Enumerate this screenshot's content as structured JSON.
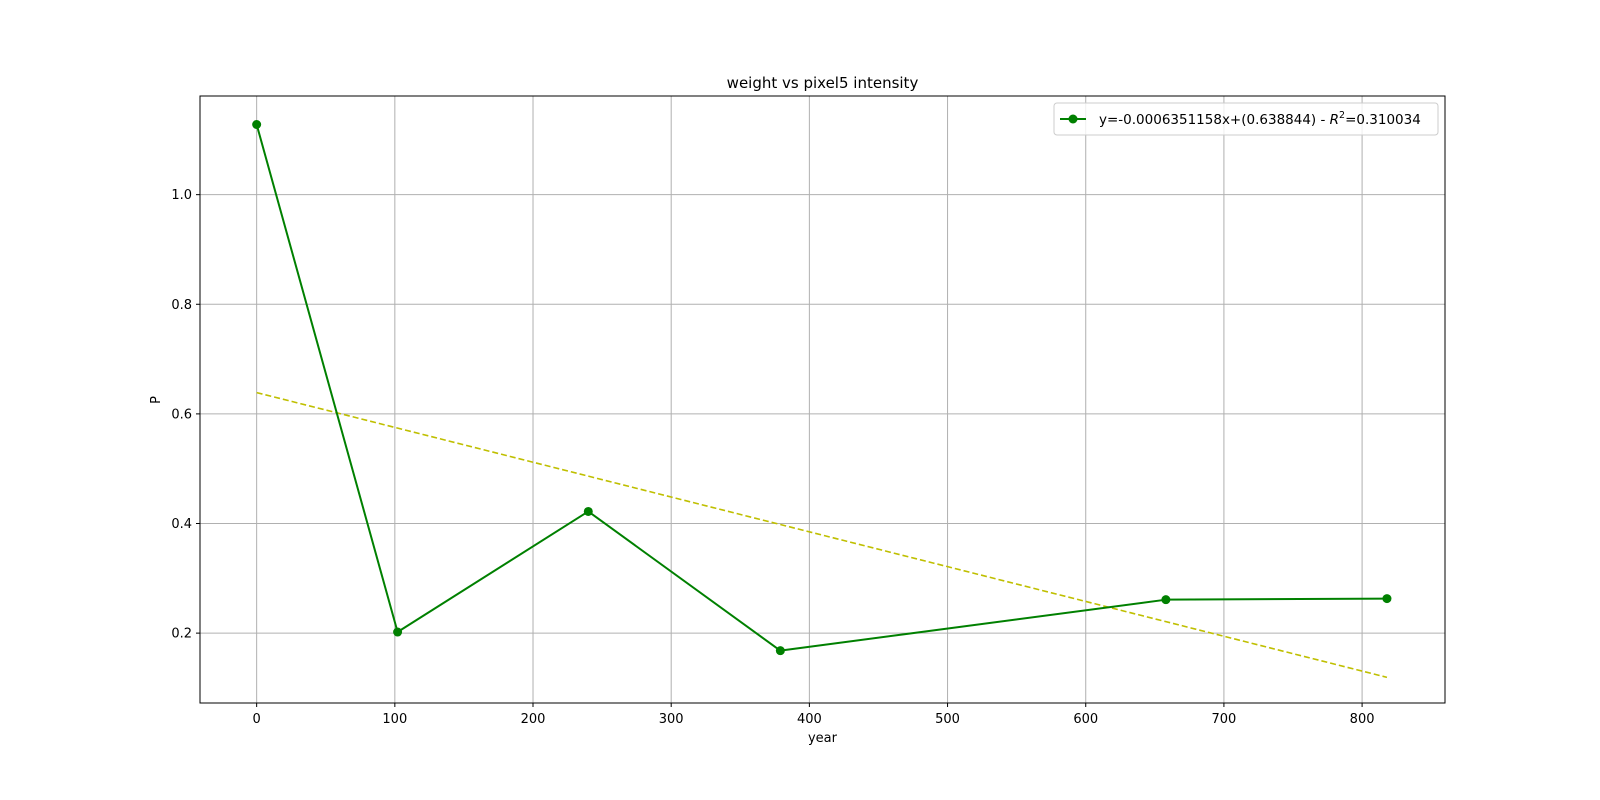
{
  "chart_data": {
    "type": "line",
    "title": "weight vs pixel5 intensity",
    "xlabel": "year",
    "ylabel": "P",
    "xlim": [
      -41,
      860
    ],
    "ylim": [
      0.0725,
      1.18
    ],
    "x_ticks": [
      0,
      100,
      200,
      300,
      400,
      500,
      600,
      700,
      800
    ],
    "y_ticks": [
      0.2,
      0.4,
      0.6,
      0.8,
      1.0
    ],
    "grid": true,
    "legend_position": "top-right",
    "series": [
      {
        "name": "y=-0.0006351158x+(0.638844) - R²=0.310034",
        "legend_prefix": "y=-0.0006351158x+(0.638844) - ",
        "legend_r": "R",
        "legend_sup": "2",
        "legend_suffix": "=0.310034",
        "color": "#008000",
        "marker": "circle",
        "x": [
          0,
          102,
          240,
          379,
          658,
          818
        ],
        "y": [
          1.128,
          0.202,
          0.422,
          0.168,
          0.261,
          0.263
        ]
      }
    ],
    "fit_line": {
      "color": "#bfbf00",
      "style": "dashed",
      "slope": -0.0006351158,
      "intercept": 0.638844,
      "x_range": [
        0,
        818
      ]
    }
  }
}
